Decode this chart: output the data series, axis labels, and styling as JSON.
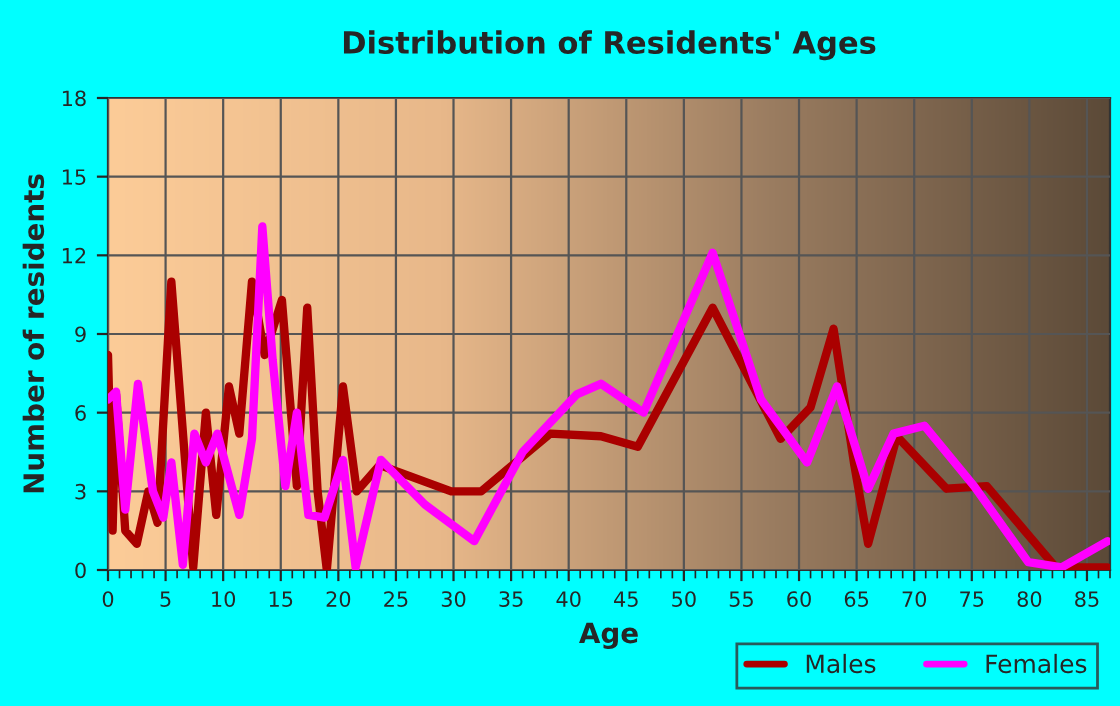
{
  "chart_data": {
    "type": "line",
    "title": "Distribution of Residents' Ages",
    "xlabel": "Age",
    "ylabel": "Number of residents",
    "xlim": [
      0,
      87
    ],
    "xticks": [
      0,
      5,
      10,
      15,
      20,
      25,
      30,
      35,
      40,
      45,
      50,
      55,
      60,
      65,
      70,
      75,
      80,
      85
    ],
    "ylim": [
      0,
      18
    ],
    "yticks": [
      0,
      3,
      6,
      9,
      12,
      15,
      18
    ],
    "grid": true,
    "legend": "bottom right",
    "marker": "none",
    "line_style": "solid",
    "series": [
      {
        "name": "Males",
        "color": "#aa0000",
        "x": [
          0,
          0.4,
          0.7,
          1.5,
          2.5,
          3.5,
          4.3,
          5.5,
          7.4,
          8.5,
          9.4,
          10.5,
          11.4,
          12.5,
          13.6,
          15.1,
          16.4,
          17.3,
          18.2,
          19,
          20.4,
          21.6,
          23.6,
          29.8,
          32.4,
          38.4,
          42.8,
          46,
          52.5,
          58.4,
          61,
          63,
          64.8,
          66,
          68.5,
          72.8,
          76.3,
          82.3,
          86.8
        ],
        "values": [
          8.2,
          1.5,
          6.7,
          1.5,
          1,
          3,
          1.8,
          11,
          0.1,
          6,
          2.1,
          7,
          5.2,
          11,
          8.2,
          10.3,
          3.2,
          10,
          3,
          0,
          7,
          3,
          4,
          3,
          3,
          5.2,
          5.1,
          4.7,
          10,
          5,
          6.2,
          9.2,
          4,
          1,
          5.1,
          3.1,
          3.2,
          0.1,
          0.1
        ]
      },
      {
        "name": "Females",
        "color": "#ff00ff",
        "x": [
          0,
          0.7,
          1.5,
          2.6,
          3.9,
          4.8,
          5.5,
          6.5,
          7.5,
          8.5,
          9.5,
          11.4,
          12.5,
          13.4,
          14.3,
          15.4,
          16.4,
          17.4,
          18.8,
          20.4,
          21.5,
          23.7,
          27.5,
          31.8,
          36,
          40.7,
          42.8,
          46.5,
          52.5,
          56.7,
          60.7,
          63.3,
          66,
          68.2,
          70.9,
          75.2,
          79.9,
          82.8,
          86.8
        ],
        "values": [
          6.5,
          6.8,
          2.3,
          7.1,
          3,
          2,
          4.1,
          0.2,
          5.2,
          4.1,
          5.2,
          2.1,
          5,
          13.1,
          8,
          3.2,
          6,
          2.1,
          2,
          4.2,
          0.1,
          4.2,
          2.5,
          1.1,
          4.5,
          6.7,
          7.1,
          6,
          12.1,
          6.5,
          4.1,
          7,
          3.1,
          5.2,
          5.5,
          3.2,
          0.3,
          0.1,
          1.1
        ]
      }
    ]
  }
}
